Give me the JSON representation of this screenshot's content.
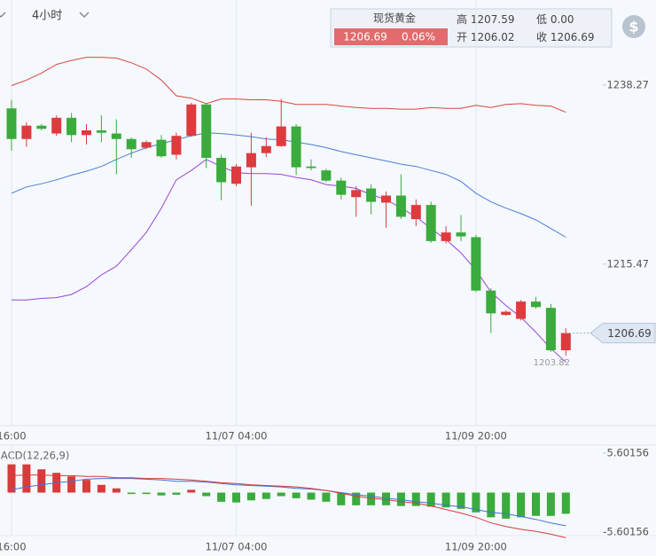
{
  "header": {
    "timeframe": "4小时",
    "name": "现货黄金",
    "price": 1206.69,
    "change": "0.06%",
    "icon": "$",
    "stats": [
      {
        "label": "高",
        "value": 1207.59
      },
      {
        "label": "低",
        "value": "0.00"
      },
      {
        "label": "开",
        "value": 1206.02
      },
      {
        "label": "收",
        "value": 1206.69
      }
    ]
  },
  "chart_data": [
    {
      "type": "candlestick",
      "categories": [
        "16:00",
        null,
        null,
        null,
        null,
        null,
        null,
        null,
        null,
        null,
        null,
        null,
        null,
        null,
        null,
        "11/07 04:00",
        null,
        null,
        null,
        null,
        null,
        null,
        null,
        null,
        null,
        null,
        null,
        null,
        null,
        null,
        null,
        "11/09 20:00",
        null,
        null,
        null,
        null,
        null,
        null
      ],
      "open": [
        1235.3,
        1231.4,
        1233.1,
        1232.1,
        1234.1,
        1231.9,
        1232.5,
        1232.1,
        1231.4,
        1230.3,
        1231.3,
        1229.4,
        1231.8,
        1235.8,
        1229.0,
        1225.7,
        1227.8,
        1229.6,
        1230.5,
        1233.0,
        1227.9,
        1227.4,
        1226.1,
        1224.0,
        1225.1,
        1223.3,
        1224.2,
        1221.2,
        1223.0,
        1218.4,
        1219.5,
        1218.9,
        1212.1,
        1209.0,
        1208.5,
        1210.7,
        1209.9,
        1204.5
      ],
      "high": [
        1236.4,
        1233.5,
        1233.3,
        1234.4,
        1234.7,
        1233.3,
        1234.4,
        1233.9,
        1231.6,
        1231.2,
        1231.9,
        1232.2,
        1236.0,
        1235.9,
        1229.4,
        1228.2,
        1232.2,
        1231.6,
        1236.5,
        1233.3,
        1228.8,
        1227.6,
        1226.5,
        1225.4,
        1225.6,
        1224.7,
        1226.9,
        1223.7,
        1223.4,
        1220.3,
        1221.7,
        1219.2,
        1212.4,
        1209.6,
        1210.9,
        1211.3,
        1210.4,
        1207.3
      ],
      "low": [
        1229.9,
        1230.4,
        1232.5,
        1231.8,
        1231.0,
        1230.7,
        1231.0,
        1226.9,
        1229.0,
        1230.1,
        1229.0,
        1228.8,
        1231.7,
        1227.7,
        1223.6,
        1225.4,
        1222.9,
        1229.1,
        1230.4,
        1226.8,
        1227.4,
        1225.9,
        1223.7,
        1221.5,
        1221.8,
        1220.1,
        1221.2,
        1220.3,
        1218.2,
        1218.1,
        1218.4,
        1211.9,
        1206.7,
        1208.9,
        1208.3,
        1209.8,
        1204.3,
        1203.82
      ],
      "close": [
        1231.4,
        1233.1,
        1232.7,
        1234.1,
        1231.9,
        1232.5,
        1232.2,
        1231.4,
        1230.1,
        1231.0,
        1229.2,
        1231.8,
        1235.8,
        1229.0,
        1225.9,
        1227.9,
        1229.6,
        1230.5,
        1233.0,
        1227.8,
        1227.7,
        1226.1,
        1224.3,
        1224.9,
        1223.4,
        1224.2,
        1221.5,
        1223.0,
        1218.4,
        1219.5,
        1219.0,
        1212.1,
        1209.2,
        1209.4,
        1210.7,
        1210.0,
        1204.5,
        1206.69
      ],
      "up_color": "#dd3b3e",
      "down_color": "#3aab3c",
      "lines": [
        {
          "color": "#d9463e",
          "values": [
            1238.2,
            1238.9,
            1239.8,
            1240.9,
            1241.4,
            1241.8,
            1241.8,
            1241.7,
            1241.1,
            1240.3,
            1238.9,
            1236.9,
            1236.6,
            1235.9,
            1236.5,
            1236.5,
            1236.4,
            1236.4,
            1236.2,
            1235.8,
            1235.8,
            1235.8,
            1235.6,
            1235.4,
            1235.3,
            1235.3,
            1235.2,
            1235.2,
            1235.4,
            1235.3,
            1235.3,
            1235.7,
            1235.4,
            1235.8,
            1235.9,
            1235.7,
            1235.6,
            1234.8
          ]
        },
        {
          "color": "#4a7fd8",
          "values": [
            1224.5,
            1225.3,
            1225.7,
            1226.2,
            1226.8,
            1227.3,
            1227.9,
            1228.8,
            1229.6,
            1230.3,
            1230.8,
            1231.3,
            1231.8,
            1232.2,
            1232.1,
            1231.9,
            1231.7,
            1231.4,
            1231.3,
            1231.0,
            1230.7,
            1230.3,
            1229.8,
            1229.4,
            1229.0,
            1228.6,
            1228.2,
            1227.9,
            1227.4,
            1226.9,
            1226.0,
            1224.5,
            1223.4,
            1222.6,
            1221.9,
            1221.1,
            1220.0,
            1218.9
          ]
        },
        {
          "color": "#9b45d6",
          "values": [
            1210.9,
            1210.9,
            1211.1,
            1211.2,
            1211.6,
            1212.6,
            1214.1,
            1215.2,
            1217.3,
            1219.5,
            1222.6,
            1226.2,
            1227.4,
            1228.8,
            1227.9,
            1227.1,
            1227.0,
            1227.0,
            1226.9,
            1226.5,
            1226.2,
            1225.6,
            1225.4,
            1225.1,
            1224.3,
            1223.7,
            1222.6,
            1221.5,
            1220.0,
            1218.6,
            1216.9,
            1214.7,
            1211.9,
            1210.2,
            1208.7,
            1206.8,
            1204.7,
            1203.0
          ]
        }
      ],
      "ylim": [
        1194.9,
        1249.1
      ],
      "yticks": [
        1238.27,
        1215.47
      ],
      "last_price": 1206.69,
      "min_marker": 1203.82
    },
    {
      "type": "macd",
      "title": "MACD(12,26,9)",
      "histogram": [
        4.0,
        4.0,
        3.3,
        2.8,
        2.3,
        1.8,
        1.1,
        0.6,
        -0.2,
        -0.2,
        -0.4,
        -0.3,
        0.4,
        -0.5,
        -1.3,
        -1.4,
        -1.1,
        -0.9,
        -0.5,
        -0.8,
        -1.0,
        -1.3,
        -1.8,
        -1.8,
        -1.8,
        -1.8,
        -1.9,
        -1.9,
        -2.0,
        -2.1,
        -2.3,
        -2.8,
        -3.5,
        -3.7,
        -3.5,
        -3.3,
        -3.3,
        -3.0
      ],
      "up_color": "#d83b3b",
      "down_color": "#3aab3c",
      "lines": [
        {
          "color": "#3f74d9",
          "values": [
            0.4,
            0.8,
            1.1,
            1.4,
            1.6,
            1.9,
            2.0,
            2.0,
            2.0,
            1.9,
            1.8,
            1.6,
            1.6,
            1.5,
            1.3,
            1.1,
            1.0,
            0.9,
            0.8,
            0.6,
            0.5,
            0.3,
            0.0,
            -0.3,
            -0.5,
            -0.8,
            -1.0,
            -1.3,
            -1.5,
            -1.8,
            -2.0,
            -2.4,
            -2.8,
            -3.0,
            -3.4,
            -3.8,
            -4.3,
            -4.7
          ]
        },
        {
          "color": "#d83b3b",
          "values": [
            2.4,
            2.5,
            2.5,
            2.4,
            2.4,
            2.3,
            2.3,
            2.1,
            2.1,
            2.0,
            2.0,
            1.9,
            1.8,
            1.6,
            1.4,
            1.3,
            1.1,
            1.0,
            0.9,
            0.8,
            0.6,
            0.3,
            -0.1,
            -0.5,
            -0.8,
            -1.0,
            -1.3,
            -1.5,
            -1.9,
            -2.4,
            -2.9,
            -3.5,
            -4.3,
            -4.8,
            -5.2,
            -5.5,
            -5.9,
            -6.4
          ]
        }
      ],
      "ylim": [
        -6.6,
        6.6
      ],
      "yticks": [
        5.60156,
        -5.60156
      ]
    }
  ]
}
